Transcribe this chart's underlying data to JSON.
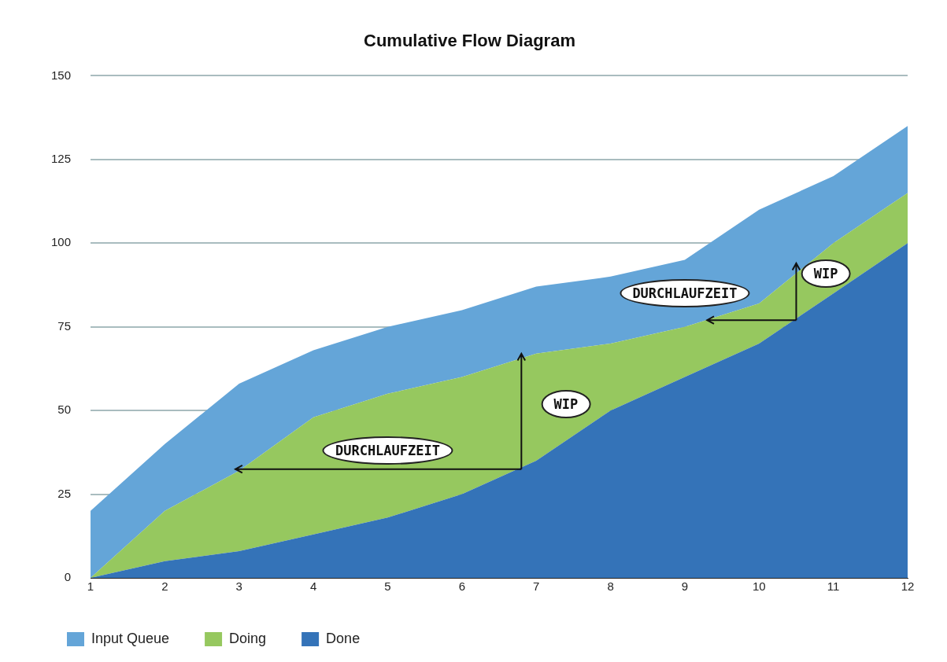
{
  "chart_data": {
    "type": "area",
    "title": "Cumulative Flow Diagram",
    "stacked": true,
    "x": [
      1,
      2,
      3,
      4,
      5,
      6,
      7,
      8,
      9,
      10,
      11,
      12
    ],
    "xlim": [
      1,
      12
    ],
    "xticks": [
      1,
      2,
      3,
      4,
      5,
      6,
      7,
      8,
      9,
      10,
      11,
      12
    ],
    "ylim": [
      0,
      150
    ],
    "yticks": [
      0,
      25,
      50,
      75,
      100,
      125,
      150
    ],
    "grid": "y",
    "legend": "bottom left",
    "series": [
      {
        "name": "Done",
        "color": "#3473b8",
        "values": [
          0,
          5,
          8,
          13,
          18,
          25,
          35,
          50,
          60,
          70,
          85,
          100
        ]
      },
      {
        "name": "Doing",
        "color": "#96c85f",
        "values": [
          0,
          15,
          24,
          35,
          37,
          35,
          32,
          20,
          15,
          12,
          15,
          15
        ]
      },
      {
        "name": "Input Queue",
        "color": "#64a5d8",
        "values": [
          20,
          20,
          26,
          20,
          20,
          20,
          20,
          20,
          20,
          28,
          20,
          20
        ]
      }
    ],
    "annotations": [
      "DURCHLAUFZEIT",
      "WIP",
      "DURCHLAUFZEIT",
      "WIP"
    ]
  }
}
